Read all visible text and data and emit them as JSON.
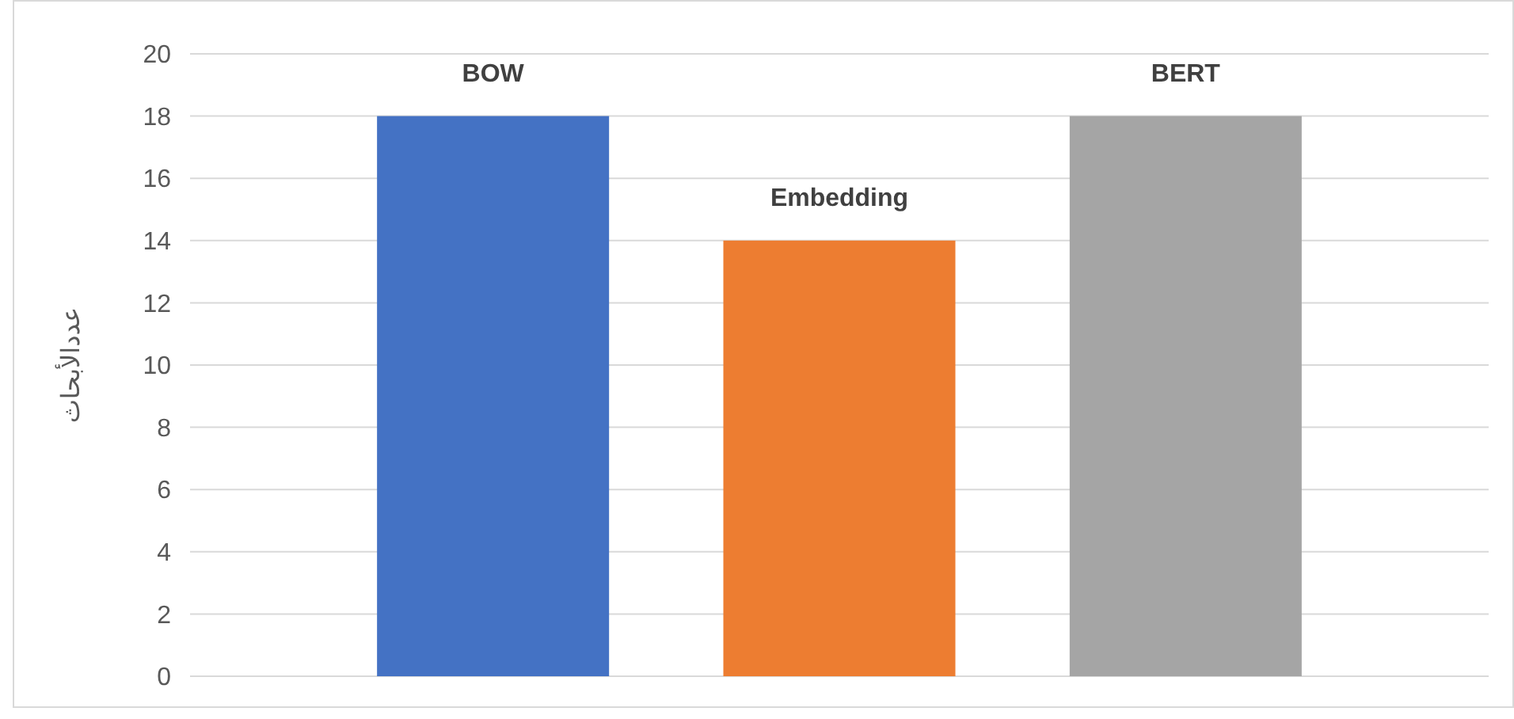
{
  "chart_data": {
    "type": "bar",
    "ylabel": "عددالأبحاث",
    "categories": [
      null
    ],
    "series": [
      {
        "name": "BOW",
        "color": "#4472c4",
        "values": [
          18
        ]
      },
      {
        "name": "Embedding",
        "color": "#ed7d31",
        "values": [
          14
        ]
      },
      {
        "name": "BERT",
        "color": "#a5a5a5",
        "values": [
          18
        ]
      }
    ],
    "ylim": [
      0,
      20
    ],
    "yticks": [
      0,
      2,
      4,
      6,
      8,
      10,
      12,
      14,
      16,
      18,
      20
    ],
    "grid": "y"
  }
}
